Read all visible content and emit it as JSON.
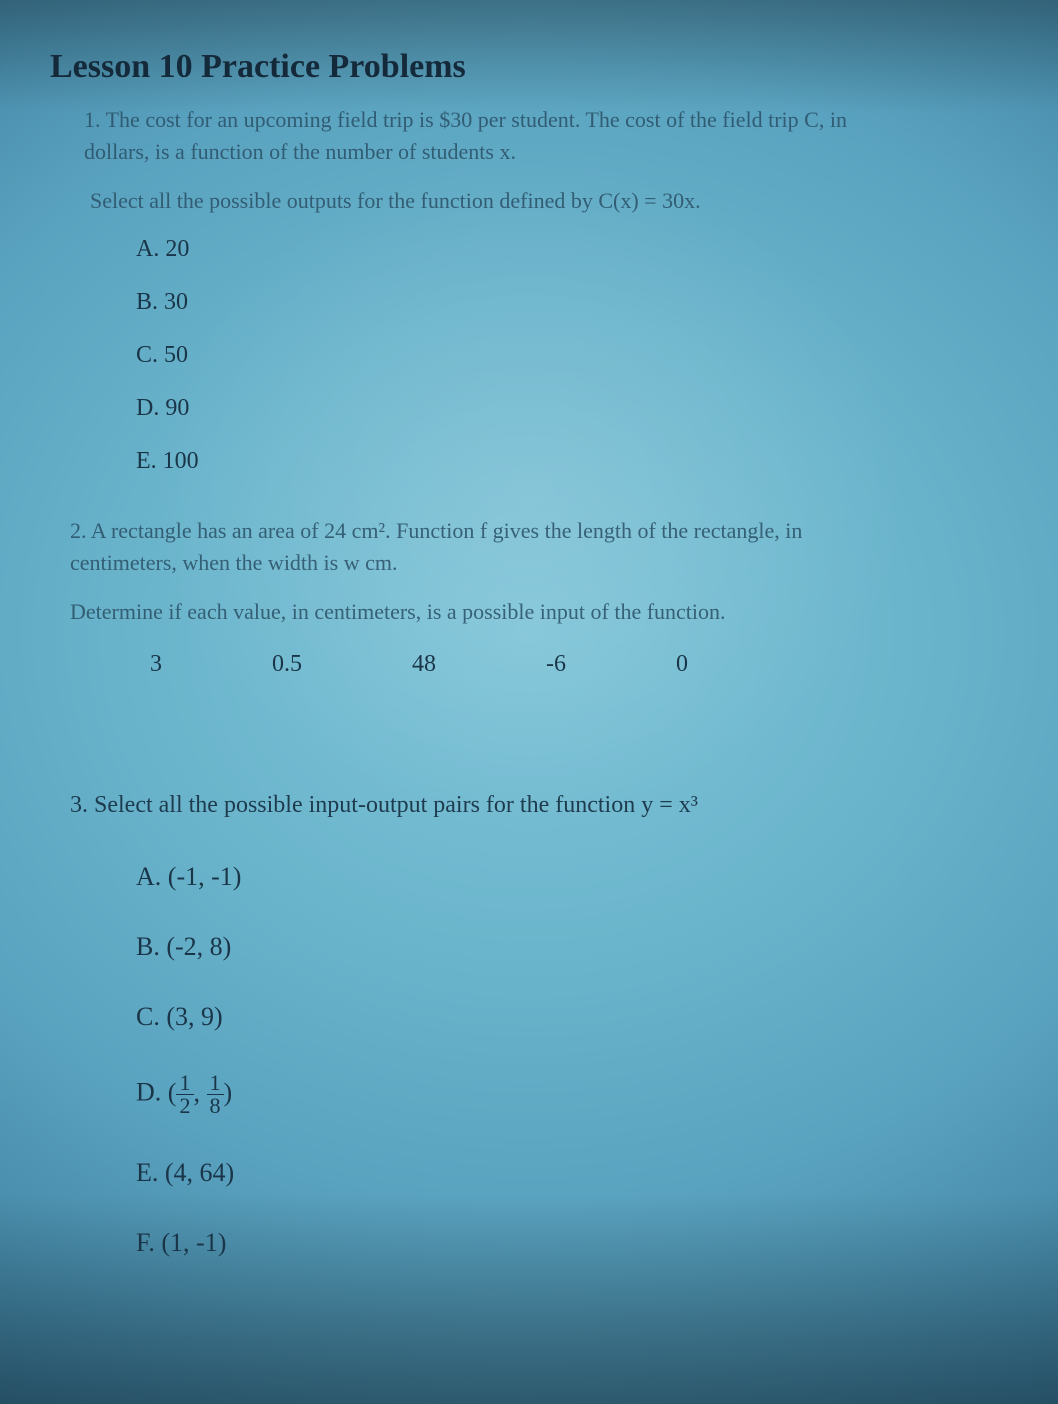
{
  "colors": {
    "bg_center": "#7fc4d8",
    "bg_mid": "#5aa3c0",
    "bg_edge": "#0a2a42",
    "text_primary": "#1a3548",
    "text_secondary": "#2a5066"
  },
  "typography": {
    "title_fontsize": 34,
    "body_fontsize": 22,
    "option_fontsize": 24,
    "font_family": "Georgia, Times New Roman, serif"
  },
  "title": "Lesson 10 Practice Problems",
  "problems": {
    "p1": {
      "number": "1.",
      "text_line1": "The cost for an upcoming field trip is $30 per student. The cost of the field trip C, in",
      "text_line2": "dollars, is a function of the number of students x.",
      "instruction": "Select all the possible outputs for the function defined by C(x) = 30x.",
      "options": {
        "A": "20",
        "B": "30",
        "C": "50",
        "D": "90",
        "E": "100"
      }
    },
    "p2": {
      "number": "2.",
      "text_line1": "A rectangle has an area of 24 cm². Function f gives the length of the rectangle, in",
      "text_line2": "centimeters, when the width is w cm.",
      "instruction": "Determine if each value, in centimeters, is a possible input of the function.",
      "values": [
        "3",
        "0.5",
        "48",
        "-6",
        "0"
      ]
    },
    "p3": {
      "number": "3.",
      "text": "Select all the possible input-output pairs for the function y = x³",
      "options": {
        "A": "(-1, -1)",
        "B": "(-2, 8)",
        "C": "(3, 9)",
        "D_prefix": "(",
        "D_n1": "1",
        "D_d1": "2",
        "D_sep": ", ",
        "D_n2": "1",
        "D_d2": "8",
        "D_suffix": ")",
        "E": "(4, 64)",
        "F": "(1, -1)"
      }
    }
  }
}
